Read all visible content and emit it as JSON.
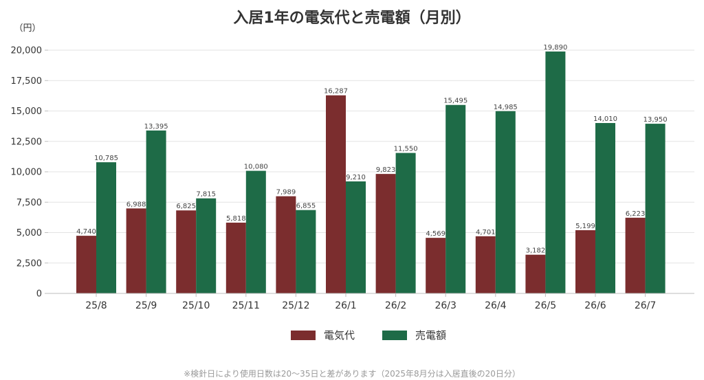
{
  "chart_data": {
    "type": "bar",
    "title": "入居1年の電気代と売電額（月別）",
    "ylabel": "（円）",
    "ylim": [
      0,
      20000
    ],
    "yticks": [
      0,
      2500,
      5000,
      7500,
      10000,
      12500,
      15000,
      17500,
      20000
    ],
    "ytick_labels": [
      "0",
      "2,500",
      "5,000",
      "7,500",
      "10,000",
      "12,500",
      "15,000",
      "17,500",
      "20,000"
    ],
    "grid": true,
    "legend_position": "bottom",
    "categories": [
      "25/8",
      "25/9",
      "25/10",
      "25/11",
      "25/12",
      "26/1",
      "26/2",
      "26/3",
      "26/4",
      "26/5",
      "26/6",
      "26/7"
    ],
    "series": [
      {
        "name": "電気代",
        "color": "#7b2d2e",
        "values": [
          4740,
          6988,
          6825,
          5818,
          7989,
          16287,
          9823,
          4569,
          4701,
          3182,
          5199,
          6223
        ],
        "labels": [
          "4,740",
          "6,988",
          "6,825",
          "5,818",
          "7,989",
          "16,287",
          "9,823",
          "4,569",
          "4,701",
          "3,182",
          "5,199",
          "6,223"
        ]
      },
      {
        "name": "売電額",
        "color": "#1e6b47",
        "values": [
          10785,
          13395,
          7815,
          10080,
          6855,
          9210,
          11550,
          15495,
          14985,
          19890,
          14010,
          13950
        ],
        "labels": [
          "10,785",
          "13,395",
          "7,815",
          "10,080",
          "6,855",
          "9,210",
          "11,550",
          "15,495",
          "14,985",
          "19,890",
          "14,010",
          "13,950"
        ]
      }
    ],
    "footnote": "※検針日により使用日数は20〜35日と差があります（2025年8月分は入居直後の20日分）"
  }
}
